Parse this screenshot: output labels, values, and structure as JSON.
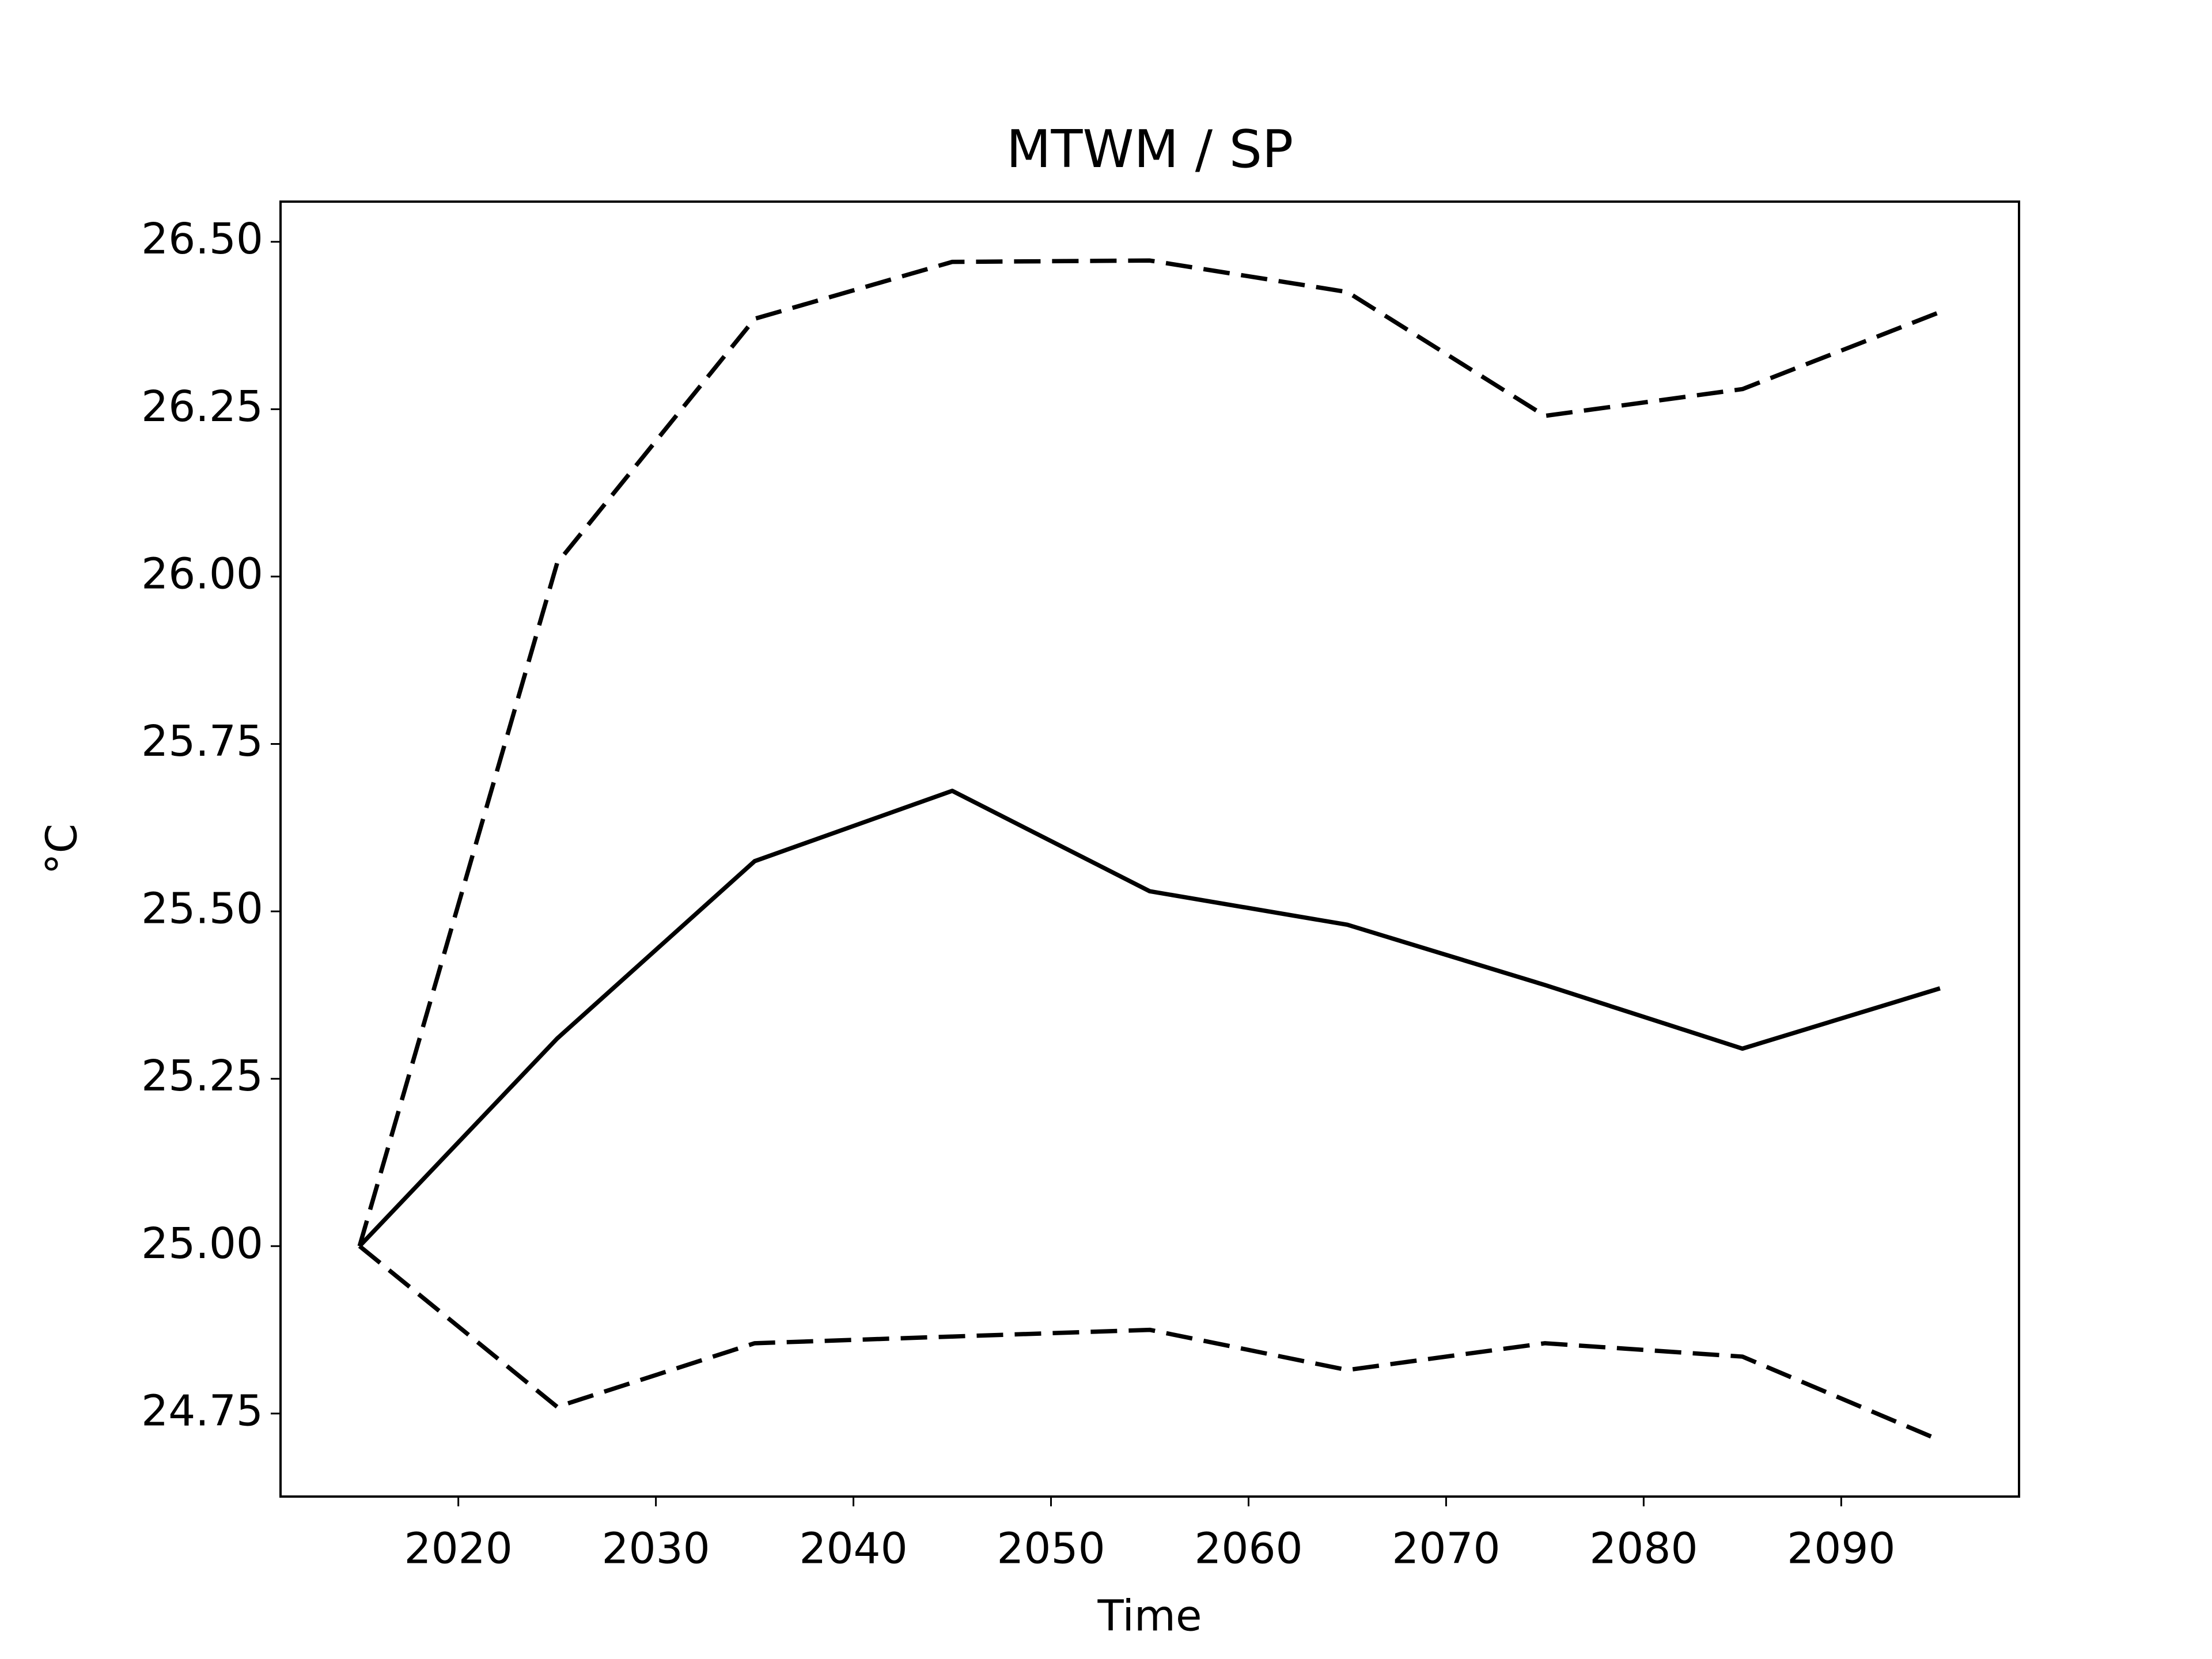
{
  "chart_data": {
    "type": "line",
    "title": "MTWM / SP",
    "xlabel": "Time",
    "ylabel": "°C",
    "x": [
      2015,
      2025,
      2035,
      2045,
      2055,
      2065,
      2075,
      2085,
      2095
    ],
    "series": [
      {
        "color": "#000000",
        "dash": false,
        "values": [
          25.0,
          25.31,
          25.575,
          25.68,
          25.53,
          25.48,
          25.39,
          25.295,
          25.385
        ]
      },
      {
        "color": "#000000",
        "dash": true,
        "values": [
          25.0,
          26.02,
          26.385,
          26.47,
          26.472,
          26.425,
          26.24,
          26.28,
          26.395
        ]
      },
      {
        "color": "#000000",
        "dash": true,
        "values": [
          25.0,
          24.76,
          24.855,
          24.865,
          24.875,
          24.815,
          24.855,
          24.835,
          24.71
        ]
      }
    ],
    "xlim": [
      2011,
      2099
    ],
    "ylim": [
      24.626,
      26.56
    ],
    "xticks": [
      2020,
      2030,
      2040,
      2050,
      2060,
      2070,
      2080,
      2090
    ],
    "yticks": [
      {
        "value": 24.75,
        "label": "24.75"
      },
      {
        "value": 25.0,
        "label": "25.00"
      },
      {
        "value": 25.25,
        "label": "25.25"
      },
      {
        "value": 25.5,
        "label": "25.50"
      },
      {
        "value": 25.75,
        "label": "25.75"
      },
      {
        "value": 26.0,
        "label": "26.00"
      },
      {
        "value": 26.25,
        "label": "26.25"
      },
      {
        "value": 26.5,
        "label": "26.50"
      }
    ],
    "grid": false
  }
}
